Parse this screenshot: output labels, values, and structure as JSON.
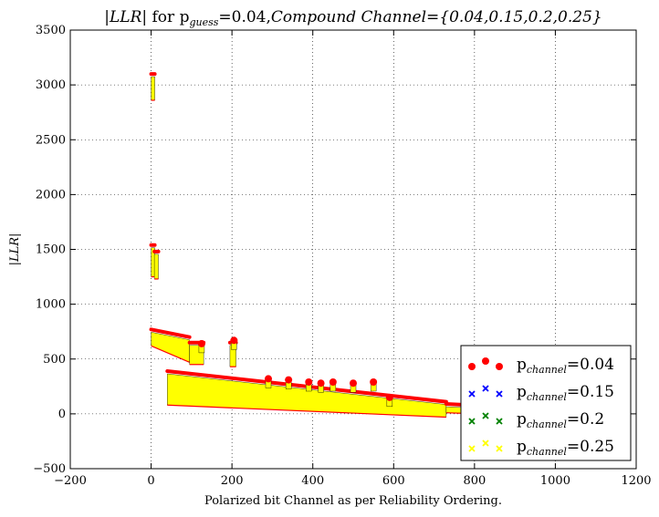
{
  "chart_data": {
    "type": "scatter",
    "title_prefix": "|LLR|",
    "title_mid": " for p",
    "title_sub": "guess",
    "title_value": "=0.04,",
    "title_italic": "Compound Channel",
    "title_tail": "={0.04,0.15,0.2,0.25}",
    "xlabel": "Polarized bit Channel as per Reliability Ordering.",
    "ylabel": "|LLR|",
    "xlim": [
      -200,
      1200
    ],
    "ylim": [
      -500,
      3500
    ],
    "xticks": [
      -200,
      0,
      200,
      400,
      600,
      800,
      1000,
      1200
    ],
    "yticks": [
      -500,
      0,
      500,
      1000,
      1500,
      2000,
      2500,
      3000,
      3500
    ],
    "xtick_labels": [
      "−200",
      "0",
      "200",
      "400",
      "600",
      "800",
      "1000",
      "1200"
    ],
    "ytick_labels": [
      "−500",
      "0",
      "500",
      "1000",
      "1500",
      "2000",
      "2500",
      "3000",
      "3500"
    ],
    "grid": true,
    "legend_position": "lower-right",
    "series": [
      {
        "name": "=0.04",
        "label_p": "p",
        "label_sub": "channel",
        "color": "#ff0000",
        "marker": "circle"
      },
      {
        "name": "=0.15",
        "label_p": "p",
        "label_sub": "channel",
        "color": "#0000ff",
        "marker": "x"
      },
      {
        "name": "=0.2",
        "label_p": "p",
        "label_sub": "channel",
        "color": "#008000",
        "marker": "x"
      },
      {
        "name": "=0.25",
        "label_p": "p",
        "label_sub": "channel",
        "color": "#ffff00",
        "marker": "x"
      }
    ],
    "segments": [
      {
        "x_start": 0,
        "x_end": 5,
        "red_top": 3100,
        "yellow_bottom": 2860
      },
      {
        "x_start": 0,
        "x_end": 8,
        "red_top": 1540,
        "yellow_bottom": 1250
      },
      {
        "x_start": 8,
        "x_end": 18,
        "red_top": 1480,
        "yellow_bottom": 1230
      },
      {
        "x_start": 0,
        "x_end": 95,
        "red_top_start": 770,
        "red_top_end": 700,
        "yellow_bottom_start": 620,
        "yellow_bottom_end": 470
      },
      {
        "x_start": 95,
        "x_end": 130,
        "red_top": 650,
        "yellow_bottom": 450
      },
      {
        "x_start": 195,
        "x_end": 210,
        "red_top": 650,
        "yellow_bottom": 430
      },
      {
        "x_start": 40,
        "x_end": 730,
        "red_top_start": 390,
        "red_top_end": 110,
        "yellow_bottom_start": 80,
        "yellow_bottom_end": -30
      },
      {
        "x_start": 730,
        "x_end": 970,
        "red_top_start": 90,
        "red_top_end": 50,
        "yellow_bottom_start": 10,
        "yellow_bottom_end": -20
      }
    ],
    "spikes": [
      {
        "x": 125,
        "top": 640
      },
      {
        "x": 205,
        "top": 670
      },
      {
        "x": 290,
        "top": 320
      },
      {
        "x": 340,
        "top": 310
      },
      {
        "x": 390,
        "top": 290
      },
      {
        "x": 420,
        "top": 280
      },
      {
        "x": 450,
        "top": 290
      },
      {
        "x": 500,
        "top": 280
      },
      {
        "x": 550,
        "top": 290
      },
      {
        "x": 590,
        "top": 150
      }
    ]
  }
}
